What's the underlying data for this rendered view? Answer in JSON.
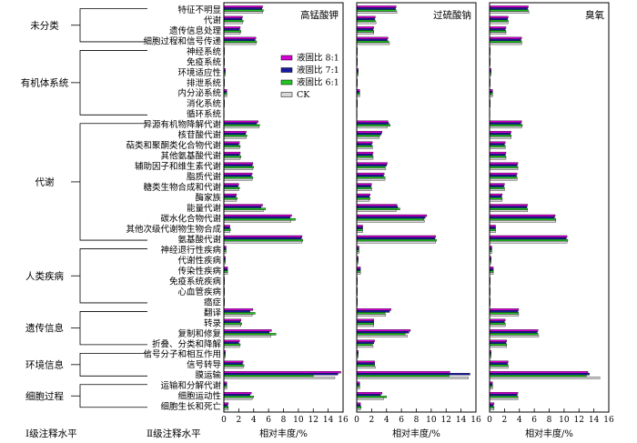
{
  "chart_data": {
    "type": "bar",
    "orientation": "horizontal",
    "x_label": "相对丰度/%",
    "xlim": [
      0,
      16
    ],
    "x_ticks": [
      0,
      2,
      4,
      6,
      8,
      10,
      12,
      14,
      16
    ],
    "level1_axis_label": "Ⅰ级注释水平",
    "level2_axis_label": "Ⅱ级注释水平",
    "series": [
      {
        "name": "液固比 8:1",
        "color": "#d400d4"
      },
      {
        "name": "液固比 7:1",
        "color": "#1a1aa0"
      },
      {
        "name": "液固比 6:1",
        "color": "#22c322"
      },
      {
        "name": "CK",
        "color": "#d8d8d8"
      }
    ],
    "level1_groups": [
      {
        "label": "未分类",
        "members": [
          "特征不明显",
          "代谢",
          "遗传信息处理",
          "细胞过程和信号传递"
        ]
      },
      {
        "label": "有机体系统",
        "members": [
          "神经系统",
          "免疫系统",
          "环境适应性",
          "排泄系统",
          "内分泌系统",
          "消化系统",
          "循环系统"
        ]
      },
      {
        "label": "代谢",
        "members": [
          "异源有机物降解代谢",
          "核苷酸代谢",
          "萜类和聚酮类化合物代谢",
          "其他氨基酸代谢",
          "辅助因子和维生素代谢",
          "脂质代谢",
          "糖类生物合成和代谢",
          "酶家族",
          "能量代谢",
          "碳水化合物代谢",
          "其他次级代谢物生物合成",
          "氨基酸代谢"
        ]
      },
      {
        "label": "人类疾病",
        "members": [
          "神经退行性疾病",
          "代谢性疾病",
          "传染性疾病",
          "免疫系统疾病",
          "心血管疾病",
          "癌症"
        ]
      },
      {
        "label": "遗传信息",
        "members": [
          "翻译",
          "转录",
          "复制和修复",
          "折叠、分类和降解"
        ]
      },
      {
        "label": "环境信息",
        "members": [
          "信号分子和相互作用",
          "信号转导",
          "膜运输"
        ]
      },
      {
        "label": "细胞过程",
        "members": [
          "运输和分解代谢",
          "细胞运动性",
          "细胞生长和死亡"
        ]
      }
    ],
    "categories": [
      "特征不明显",
      "代谢",
      "遗传信息处理",
      "细胞过程和信号传递",
      "神经系统",
      "免疫系统",
      "环境适应性",
      "排泄系统",
      "内分泌系统",
      "消化系统",
      "循环系统",
      "异源有机物降解代谢",
      "核苷酸代谢",
      "萜类和聚酮类化合物代谢",
      "其他氨基酸代谢",
      "辅助因子和维生素代谢",
      "脂质代谢",
      "糖类生物合成和代谢",
      "酶家族",
      "能量代谢",
      "碳水化合物代谢",
      "其他次级代谢物生物合成",
      "氨基酸代谢",
      "神经退行性疾病",
      "代谢性疾病",
      "传染性疾病",
      "免疫系统疾病",
      "心血管疾病",
      "癌症",
      "翻译",
      "转录",
      "复制和修复",
      "折叠、分类和降解",
      "信号分子和相互作用",
      "信号转导",
      "膜运输",
      "运输和分解代谢",
      "细胞运动性",
      "细胞生长和死亡"
    ],
    "panels": [
      {
        "title": "高锰酸钾",
        "values": [
          [
            5.2,
            5.1,
            5.3,
            5.2
          ],
          [
            2.5,
            2.4,
            2.6,
            2.5
          ],
          [
            2.2,
            2.1,
            2.3,
            2.2
          ],
          [
            4.3,
            4.2,
            4.4,
            4.3
          ],
          [
            0.1,
            0.1,
            0.1,
            0.1
          ],
          [
            0.1,
            0.1,
            0.1,
            0.1
          ],
          [
            0.2,
            0.2,
            0.2,
            0.2
          ],
          [
            0.1,
            0.1,
            0.1,
            0.1
          ],
          [
            0.4,
            0.4,
            0.4,
            0.4
          ],
          [
            0.1,
            0.1,
            0.1,
            0.1
          ],
          [
            0.05,
            0.05,
            0.05,
            0.05
          ],
          [
            4.6,
            4.4,
            4.8,
            4.7
          ],
          [
            3.0,
            2.9,
            3.1,
            3.0
          ],
          [
            2.1,
            2.0,
            2.2,
            2.1
          ],
          [
            2.2,
            2.1,
            2.3,
            2.2
          ],
          [
            3.9,
            3.8,
            4.0,
            3.9
          ],
          [
            3.8,
            3.7,
            3.9,
            3.8
          ],
          [
            2.0,
            1.9,
            2.1,
            2.0
          ],
          [
            1.7,
            1.6,
            1.8,
            1.7
          ],
          [
            5.2,
            5.0,
            5.6,
            5.3
          ],
          [
            9.1,
            8.9,
            9.6,
            9.0
          ],
          [
            0.8,
            0.8,
            0.9,
            0.8
          ],
          [
            10.5,
            10.4,
            10.6,
            10.5
          ],
          [
            0.3,
            0.3,
            0.3,
            0.3
          ],
          [
            0.2,
            0.2,
            0.2,
            0.2
          ],
          [
            0.5,
            0.5,
            0.5,
            0.5
          ],
          [
            0.1,
            0.1,
            0.1,
            0.1
          ],
          [
            0.1,
            0.1,
            0.1,
            0.1
          ],
          [
            0.1,
            0.1,
            0.1,
            0.1
          ],
          [
            3.9,
            3.5,
            4.2,
            3.8
          ],
          [
            2.3,
            2.2,
            2.4,
            2.3
          ],
          [
            6.4,
            6.1,
            7.0,
            6.3
          ],
          [
            2.1,
            2.0,
            2.2,
            2.1
          ],
          [
            0.2,
            0.2,
            0.2,
            0.2
          ],
          [
            2.6,
            2.5,
            2.7,
            2.6
          ],
          [
            15.7,
            15.3,
            12.0,
            14.9
          ],
          [
            0.4,
            0.4,
            0.4,
            0.4
          ],
          [
            3.7,
            3.5,
            4.0,
            3.8
          ],
          [
            0.6,
            0.5,
            0.6,
            0.6
          ]
        ]
      },
      {
        "title": "过硫酸钠",
        "values": [
          [
            5.3,
            5.2,
            5.3,
            5.4
          ],
          [
            2.5,
            2.4,
            2.5,
            2.6
          ],
          [
            2.3,
            2.2,
            2.3,
            2.3
          ],
          [
            4.2,
            4.1,
            4.3,
            4.4
          ],
          [
            0.1,
            0.1,
            0.1,
            0.1
          ],
          [
            0.1,
            0.1,
            0.1,
            0.1
          ],
          [
            0.2,
            0.2,
            0.2,
            0.2
          ],
          [
            0.1,
            0.1,
            0.1,
            0.1
          ],
          [
            0.4,
            0.4,
            0.4,
            0.4
          ],
          [
            0.1,
            0.1,
            0.1,
            0.1
          ],
          [
            0.05,
            0.05,
            0.05,
            0.05
          ],
          [
            4.2,
            4.3,
            4.5,
            4.1
          ],
          [
            3.4,
            3.3,
            3.1,
            3.0
          ],
          [
            2.1,
            2.0,
            2.1,
            2.1
          ],
          [
            2.2,
            2.1,
            2.2,
            2.2
          ],
          [
            4.1,
            4.0,
            3.8,
            3.9
          ],
          [
            3.7,
            3.6,
            3.8,
            3.8
          ],
          [
            2.0,
            1.9,
            2.0,
            2.0
          ],
          [
            1.8,
            1.7,
            1.8,
            1.7
          ],
          [
            5.4,
            5.5,
            5.8,
            5.3
          ],
          [
            9.4,
            9.2,
            9.0,
            9.1
          ],
          [
            0.8,
            0.8,
            0.8,
            0.8
          ],
          [
            10.6,
            10.5,
            10.7,
            10.6
          ],
          [
            0.3,
            0.3,
            0.3,
            0.3
          ],
          [
            0.2,
            0.2,
            0.2,
            0.2
          ],
          [
            0.5,
            0.5,
            0.5,
            0.5
          ],
          [
            0.1,
            0.1,
            0.1,
            0.1
          ],
          [
            0.1,
            0.1,
            0.1,
            0.1
          ],
          [
            0.1,
            0.1,
            0.1,
            0.1
          ],
          [
            4.6,
            4.4,
            3.8,
            3.9
          ],
          [
            2.3,
            2.3,
            2.3,
            2.3
          ],
          [
            7.2,
            7.0,
            6.5,
            6.8
          ],
          [
            2.4,
            2.3,
            2.1,
            2.2
          ],
          [
            0.2,
            0.2,
            0.2,
            0.2
          ],
          [
            2.4,
            2.4,
            2.4,
            2.5
          ],
          [
            12.5,
            15.2,
            12.4,
            15.0
          ],
          [
            0.4,
            0.4,
            0.4,
            0.4
          ],
          [
            3.4,
            3.2,
            4.0,
            3.6
          ],
          [
            0.5,
            0.5,
            0.6,
            0.5
          ]
        ]
      },
      {
        "title": "臭氧",
        "values": [
          [
            5.2,
            5.1,
            5.2,
            5.3
          ],
          [
            2.5,
            2.4,
            2.5,
            2.5
          ],
          [
            2.2,
            2.1,
            2.2,
            2.2
          ],
          [
            4.3,
            4.2,
            4.3,
            4.3
          ],
          [
            0.1,
            0.1,
            0.1,
            0.1
          ],
          [
            0.1,
            0.1,
            0.1,
            0.1
          ],
          [
            0.2,
            0.2,
            0.2,
            0.2
          ],
          [
            0.1,
            0.1,
            0.1,
            0.1
          ],
          [
            0.4,
            0.4,
            0.4,
            0.4
          ],
          [
            0.1,
            0.1,
            0.1,
            0.1
          ],
          [
            0.05,
            0.05,
            0.05,
            0.05
          ],
          [
            4.3,
            4.2,
            4.4,
            4.3
          ],
          [
            2.9,
            2.8,
            2.9,
            2.9
          ],
          [
            2.1,
            2.0,
            2.1,
            2.1
          ],
          [
            2.2,
            2.1,
            2.2,
            2.2
          ],
          [
            3.8,
            3.7,
            3.8,
            3.8
          ],
          [
            3.7,
            3.6,
            3.7,
            3.7
          ],
          [
            2.0,
            1.9,
            2.0,
            2.0
          ],
          [
            1.7,
            1.6,
            1.7,
            1.7
          ],
          [
            5.1,
            5.0,
            5.1,
            5.1
          ],
          [
            8.8,
            8.7,
            8.9,
            8.9
          ],
          [
            0.8,
            0.8,
            0.8,
            0.8
          ],
          [
            10.4,
            10.3,
            10.5,
            10.4
          ],
          [
            0.3,
            0.3,
            0.3,
            0.3
          ],
          [
            0.2,
            0.2,
            0.2,
            0.2
          ],
          [
            0.5,
            0.5,
            0.5,
            0.5
          ],
          [
            0.1,
            0.1,
            0.1,
            0.1
          ],
          [
            0.1,
            0.1,
            0.1,
            0.1
          ],
          [
            0.1,
            0.1,
            0.1,
            0.1
          ],
          [
            3.9,
            3.8,
            3.9,
            3.9
          ],
          [
            2.1,
            2.0,
            2.1,
            2.1
          ],
          [
            6.5,
            6.4,
            6.5,
            6.6
          ],
          [
            2.3,
            2.2,
            2.3,
            2.3
          ],
          [
            0.2,
            0.2,
            0.2,
            0.2
          ],
          [
            2.5,
            2.4,
            2.5,
            2.5
          ],
          [
            13.2,
            13.4,
            13.0,
            14.8
          ],
          [
            0.4,
            0.4,
            0.4,
            0.4
          ],
          [
            3.8,
            3.7,
            3.8,
            3.8
          ],
          [
            0.6,
            0.5,
            0.6,
            0.6
          ]
        ]
      }
    ]
  }
}
